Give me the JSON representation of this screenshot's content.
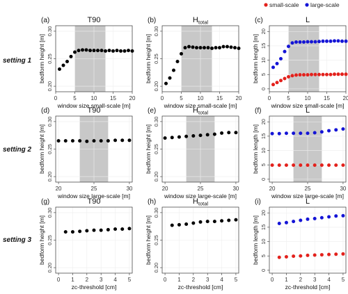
{
  "legend": {
    "placement": "top-right",
    "items": [
      {
        "label": "small-scale",
        "color": "#e3211c"
      },
      {
        "label": "large-scale",
        "color": "#1414d6"
      }
    ]
  },
  "row_labels": [
    "setting 1",
    "setting 2",
    "setting 3"
  ],
  "colors": {
    "shade": "#c8c8c8",
    "grid": "#eeeeee",
    "frame": "#333333",
    "black_points": "#000000",
    "small_scale": "#e3211c",
    "large_scale": "#1414d6"
  },
  "chart_data": [
    {
      "id": "a",
      "type": "scatter",
      "panel_label": "(a)",
      "title": "T90",
      "title_sub": "",
      "xlabel": "window size small-scale [m]",
      "ylabel": "bedform height [m]",
      "xlim": [
        0,
        20
      ],
      "ylim": [
        0.19,
        0.31
      ],
      "xticks": [
        0,
        5,
        10,
        15,
        20
      ],
      "yticks": [
        0.2,
        0.25,
        0.3
      ],
      "ytick_labels": [
        "0.20",
        "0.25",
        "0.30"
      ],
      "grid": true,
      "shade": [
        5,
        13
      ],
      "series": [
        {
          "color": "#000000",
          "x": [
            1,
            2,
            3,
            4,
            5,
            6,
            7,
            8,
            9,
            10,
            11,
            12,
            13,
            14,
            15,
            16,
            17,
            18,
            19,
            20
          ],
          "y": [
            0.231,
            0.238,
            0.245,
            0.254,
            0.262,
            0.265,
            0.266,
            0.266,
            0.265,
            0.265,
            0.265,
            0.265,
            0.264,
            0.265,
            0.264,
            0.265,
            0.264,
            0.264,
            0.265,
            0.264
          ]
        }
      ]
    },
    {
      "id": "b",
      "type": "scatter",
      "panel_label": "(b)",
      "title": "H",
      "title_sub": "total",
      "xlabel": "window size small-scale [m]",
      "ylabel": "bedform height [m]",
      "xlim": [
        0,
        20
      ],
      "ylim": [
        0.19,
        0.31
      ],
      "xticks": [
        0,
        5,
        10,
        15,
        20
      ],
      "yticks": [
        0.2,
        0.25,
        0.3
      ],
      "ytick_labels": [
        "0.20",
        "0.25",
        "0.30"
      ],
      "grid": true,
      "shade": [
        5,
        13
      ],
      "series": [
        {
          "color": "#000000",
          "x": [
            1,
            2,
            3,
            4,
            5,
            6,
            7,
            8,
            9,
            10,
            11,
            12,
            13,
            14,
            15,
            16,
            17,
            18,
            19,
            20
          ],
          "y": [
            0.205,
            0.215,
            0.229,
            0.245,
            0.259,
            0.27,
            0.272,
            0.271,
            0.27,
            0.27,
            0.27,
            0.27,
            0.269,
            0.27,
            0.27,
            0.272,
            0.272,
            0.271,
            0.27,
            0.269
          ]
        }
      ]
    },
    {
      "id": "c",
      "type": "scatter",
      "panel_label": "(c)",
      "title": "L",
      "title_sub": "",
      "xlabel": "window size small-scale [m]",
      "ylabel": "bedform length [m]",
      "xlim": [
        0,
        20
      ],
      "ylim": [
        -1,
        22
      ],
      "xticks": [
        0,
        5,
        10,
        15,
        20
      ],
      "yticks": [
        0,
        5,
        10,
        15,
        20
      ],
      "ytick_labels": [
        "0",
        "5",
        "10",
        "15",
        "20"
      ],
      "grid": true,
      "shade": [
        5,
        13
      ],
      "series": [
        {
          "name": "small-scale",
          "color": "#e3211c",
          "x": [
            1,
            2,
            3,
            4,
            5,
            6,
            7,
            8,
            9,
            10,
            11,
            12,
            13,
            14,
            15,
            16,
            17,
            18,
            19,
            20
          ],
          "y": [
            1.5,
            2.2,
            2.9,
            3.6,
            4.2,
            4.6,
            4.8,
            4.9,
            4.9,
            4.9,
            5.0,
            5.0,
            5.0,
            5.0,
            5.0,
            5.0,
            5.1,
            5.1,
            5.1,
            5.1
          ]
        },
        {
          "name": "large-scale",
          "color": "#1414d6",
          "x": [
            1,
            2,
            3,
            4,
            5,
            6,
            7,
            8,
            9,
            10,
            11,
            12,
            13,
            14,
            15,
            16,
            17,
            18,
            19,
            20
          ],
          "y": [
            7.5,
            8.8,
            10.5,
            13.0,
            14.8,
            16.0,
            16.3,
            16.3,
            16.3,
            16.4,
            16.4,
            16.4,
            16.5,
            16.6,
            16.6,
            16.6,
            16.7,
            16.7,
            16.6,
            16.6
          ]
        }
      ]
    },
    {
      "id": "d",
      "type": "scatter",
      "panel_label": "(d)",
      "title": "T90",
      "title_sub": "",
      "xlabel": "window size large-scale [m]",
      "ylabel": "bedform height [m]",
      "xlim": [
        19.6,
        30.4
      ],
      "ylim": [
        0.19,
        0.31
      ],
      "xticks": [
        20,
        25,
        30
      ],
      "yticks": [
        0.2,
        0.25,
        0.3
      ],
      "ytick_labels": [
        "0.20",
        "0.25",
        "0.30"
      ],
      "grid": true,
      "shade": [
        23,
        27
      ],
      "series": [
        {
          "color": "#000000",
          "x": [
            20,
            21,
            22,
            23,
            24,
            25,
            26,
            27,
            28,
            29,
            30
          ],
          "y": [
            0.265,
            0.265,
            0.265,
            0.265,
            0.264,
            0.265,
            0.265,
            0.265,
            0.266,
            0.266,
            0.266
          ]
        }
      ]
    },
    {
      "id": "e",
      "type": "scatter",
      "panel_label": "(e)",
      "title": "H",
      "title_sub": "total",
      "xlabel": "window size large-scale [m]",
      "ylabel": "bedform height [m]",
      "xlim": [
        19.6,
        30.4
      ],
      "ylim": [
        0.19,
        0.31
      ],
      "xticks": [
        20,
        25,
        30
      ],
      "yticks": [
        0.2,
        0.25,
        0.3
      ],
      "ytick_labels": [
        "0.20",
        "0.25",
        "0.30"
      ],
      "grid": true,
      "shade": [
        23,
        27
      ],
      "series": [
        {
          "color": "#000000",
          "x": [
            20,
            21,
            22,
            23,
            24,
            25,
            26,
            27,
            28,
            29,
            30
          ],
          "y": [
            0.27,
            0.271,
            0.272,
            0.273,
            0.274,
            0.275,
            0.276,
            0.277,
            0.279,
            0.28,
            0.28
          ]
        }
      ]
    },
    {
      "id": "f",
      "type": "scatter",
      "panel_label": "(f)",
      "title": "L",
      "title_sub": "",
      "xlabel": "window size large-scale [m]",
      "ylabel": "bedform length [m]",
      "xlim": [
        19.6,
        30.4
      ],
      "ylim": [
        -1,
        22
      ],
      "xticks": [
        20,
        25,
        30
      ],
      "yticks": [
        0,
        5,
        10,
        15,
        20
      ],
      "ytick_labels": [
        "0",
        "5",
        "10",
        "15",
        "20"
      ],
      "grid": true,
      "shade": [
        23,
        27
      ],
      "series": [
        {
          "name": "small-scale",
          "color": "#e3211c",
          "x": [
            20,
            21,
            22,
            23,
            24,
            25,
            26,
            27,
            28,
            29,
            30
          ],
          "y": [
            4.9,
            4.9,
            4.9,
            4.9,
            4.9,
            4.9,
            4.9,
            4.9,
            4.9,
            4.9,
            4.9
          ]
        },
        {
          "name": "large-scale",
          "color": "#1414d6",
          "x": [
            20,
            21,
            22,
            23,
            24,
            25,
            26,
            27,
            28,
            29,
            30
          ],
          "y": [
            15.9,
            15.9,
            16.0,
            16.0,
            16.0,
            16.0,
            16.2,
            16.5,
            16.9,
            17.2,
            17.5
          ]
        }
      ]
    },
    {
      "id": "g",
      "type": "scatter",
      "panel_label": "(g)",
      "title": "T90",
      "title_sub": "",
      "xlabel": "zc-threshold [cm]",
      "ylabel": "bedform height [m]",
      "xlim": [
        -0.2,
        5.2
      ],
      "ylim": [
        0.19,
        0.31
      ],
      "xticks": [
        0,
        1,
        2,
        3,
        4,
        5
      ],
      "yticks": [
        0.2,
        0.25,
        0.3
      ],
      "ytick_labels": [
        "0.20",
        "0.25",
        "0.30"
      ],
      "grid": true,
      "shade": null,
      "series": [
        {
          "color": "#000000",
          "x": [
            0.5,
            1.0,
            1.5,
            2.0,
            2.5,
            3.0,
            3.5,
            4.0,
            4.5,
            5.0
          ],
          "y": [
            0.265,
            0.265,
            0.266,
            0.267,
            0.268,
            0.268,
            0.269,
            0.27,
            0.27,
            0.271
          ]
        }
      ]
    },
    {
      "id": "h",
      "type": "scatter",
      "panel_label": "(h)",
      "title": "H",
      "title_sub": "total",
      "xlabel": "zc-threshold [cm]",
      "ylabel": "bedform height [m]",
      "xlim": [
        -0.2,
        5.2
      ],
      "ylim": [
        0.19,
        0.31
      ],
      "xticks": [
        0,
        1,
        2,
        3,
        4,
        5
      ],
      "yticks": [
        0.2,
        0.25,
        0.3
      ],
      "ytick_labels": [
        "0.20",
        "0.25",
        "0.30"
      ],
      "grid": true,
      "shade": null,
      "series": [
        {
          "color": "#000000",
          "x": [
            0.5,
            1.0,
            1.5,
            2.0,
            2.5,
            3.0,
            3.5,
            4.0,
            4.5,
            5.0
          ],
          "y": [
            0.277,
            0.278,
            0.279,
            0.281,
            0.283,
            0.284,
            0.284,
            0.285,
            0.286,
            0.287
          ]
        }
      ]
    },
    {
      "id": "i",
      "type": "scatter",
      "panel_label": "(i)",
      "title": "L",
      "title_sub": "",
      "xlabel": "zc-threshold [cm]",
      "ylabel": "bedform length [m]",
      "xlim": [
        -0.2,
        5.2
      ],
      "ylim": [
        -1,
        22
      ],
      "xticks": [
        0,
        1,
        2,
        3,
        4,
        5
      ],
      "yticks": [
        0,
        5,
        10,
        15,
        20
      ],
      "ytick_labels": [
        "0",
        "5",
        "10",
        "15",
        "20"
      ],
      "grid": true,
      "shade": null,
      "series": [
        {
          "name": "small-scale",
          "color": "#e3211c",
          "x": [
            0.5,
            1.0,
            1.5,
            2.0,
            2.5,
            3.0,
            3.5,
            4.0,
            4.5,
            5.0
          ],
          "y": [
            4.5,
            4.7,
            4.9,
            5.0,
            5.2,
            5.3,
            5.4,
            5.5,
            5.6,
            5.7
          ]
        },
        {
          "name": "large-scale",
          "color": "#1414d6",
          "x": [
            0.5,
            1.0,
            1.5,
            2.0,
            2.5,
            3.0,
            3.5,
            4.0,
            4.5,
            5.0
          ],
          "y": [
            16.3,
            16.6,
            17.0,
            17.4,
            17.8,
            18.0,
            18.3,
            18.6,
            18.9,
            19.0
          ]
        }
      ]
    }
  ]
}
